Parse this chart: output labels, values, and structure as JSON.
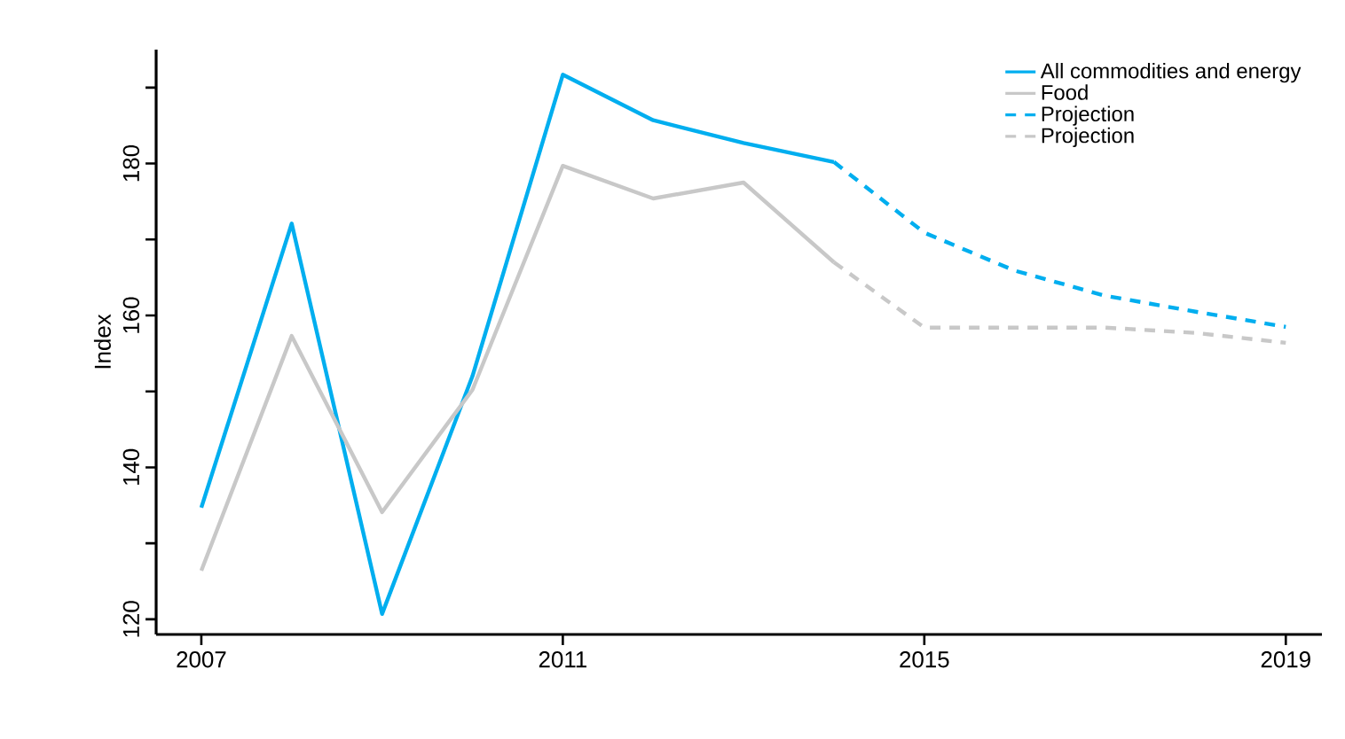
{
  "chart_data": {
    "type": "line",
    "ylabel": "Index",
    "xlim": [
      2006.5,
      2019.4
    ],
    "xticks": [
      2007,
      2011,
      2015,
      2019
    ],
    "ylim": [
      118,
      195
    ],
    "yticks": [
      120,
      {
        "value": 130,
        "label": null
      },
      140,
      {
        "value": 150,
        "label": null
      },
      160,
      {
        "value": 170,
        "label": null
      },
      180,
      {
        "value": 190,
        "label": null
      }
    ],
    "legend": "top right",
    "marker": "none",
    "series": [
      {
        "name": "All commodities and energy",
        "color": "#00aeef",
        "line_style": "solid",
        "x": [
          2007,
          2008,
          2009,
          2010,
          2011,
          2012,
          2013,
          2014
        ],
        "values": [
          134.7,
          172.1,
          120.7,
          152.0,
          191.7,
          185.7,
          182.7,
          180.2
        ]
      },
      {
        "name": "Food",
        "color": "#c8c8c8",
        "line_style": "solid",
        "x": [
          2007,
          2008,
          2009,
          2010,
          2011,
          2012,
          2013,
          2014
        ],
        "values": [
          126.4,
          157.3,
          134.1,
          150.2,
          179.7,
          175.4,
          177.5,
          167.0
        ]
      },
      {
        "name": "Projection",
        "color": "#00aeef",
        "line_style": "dashed",
        "x": [
          2014,
          2015,
          2016,
          2017,
          2018,
          2019
        ],
        "values": [
          180.2,
          170.9,
          165.9,
          162.6,
          160.5,
          158.5
        ]
      },
      {
        "name": "Projection",
        "color": "#c8c8c8",
        "line_style": "dashed",
        "x": [
          2014,
          2015,
          2016,
          2017,
          2018,
          2019
        ],
        "values": [
          167.0,
          158.4,
          158.4,
          158.4,
          157.7,
          156.4
        ]
      }
    ]
  }
}
